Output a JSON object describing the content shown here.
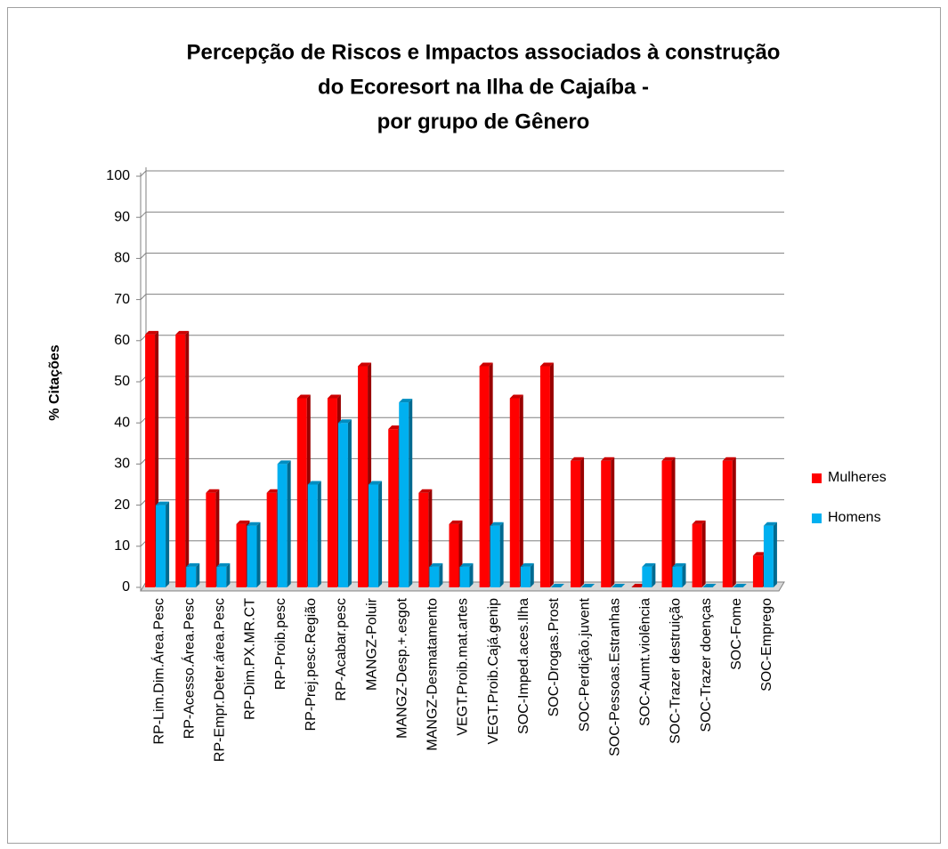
{
  "chart_data": {
    "type": "bar",
    "title": [
      "Percepção de Riscos e Impactos associados à construção",
      "do Ecoresort na Ilha de Cajaíba -",
      "por grupo de Gênero"
    ],
    "y_label": "% Citações",
    "categories": [
      "RP-Lim.Dim.Área.Pesc",
      "RP-Acesso.Área.Pesc",
      "RP-Empr.Deter.área.Pesc",
      "RP-Dim.PX.MR.CT",
      "RP-Proib.pesc",
      "RP-Prej.pesc.Região",
      "RP-Acabar.pesc",
      "MANGZ-Poluir",
      "MANGZ-Desp.+.esgot",
      "MANGZ-Desmatamento",
      "VEGT.Proib.mat.artes",
      "VEGT.Proib.Cajá.genip",
      "SOC-Imped.aces.Ilha",
      "SOC-Drogas.Prost",
      "SOC-Perdição.juvent",
      "SOC-Pessoas.Estranhas",
      "SOC-Aumt.violência",
      "SOC-Trazer destruição",
      "SOC-Trazer doenças",
      "SOC-Fome",
      "SOC-Emprego"
    ],
    "series": [
      {
        "name": "Mulheres",
        "color": "#ff0000",
        "values": [
          61.5,
          61.5,
          23,
          15.4,
          23,
          46,
          46,
          53.8,
          38.5,
          23,
          15.4,
          53.8,
          46,
          53.8,
          30.8,
          30.8,
          0,
          30.8,
          15.4,
          30.8,
          7.7
        ]
      },
      {
        "name": "Homens",
        "color": "#00b0f0",
        "values": [
          20,
          5,
          5,
          15,
          30,
          25,
          40,
          25,
          45,
          5,
          5,
          15,
          5,
          0,
          0,
          0,
          5,
          5,
          0,
          0,
          15
        ]
      }
    ],
    "ylim": [
      0,
      100
    ],
    "yticks": [
      0,
      10,
      20,
      30,
      40,
      50,
      60,
      70,
      80,
      90,
      100
    ],
    "grid": true,
    "legend": "right"
  }
}
